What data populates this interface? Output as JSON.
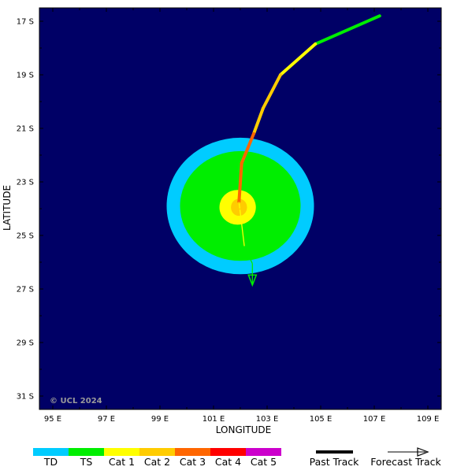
{
  "map": {
    "background": "#000066",
    "copyright": "© UCL 2024",
    "xlabel": "LONGITUDE",
    "ylabel": "LATITUDE",
    "lon_range": [
      94.5,
      109.5
    ],
    "lat_range": [
      -16.5,
      -31.5
    ],
    "lon_ticks": [
      {
        "value": 95,
        "label": "95 E"
      },
      {
        "value": 97,
        "label": "97 E"
      },
      {
        "value": 99,
        "label": "99 E"
      },
      {
        "value": 101,
        "label": "101 E"
      },
      {
        "value": 103,
        "label": "103 E"
      },
      {
        "value": 105,
        "label": "105 E"
      },
      {
        "value": 107,
        "label": "107 E"
      },
      {
        "value": 109,
        "label": "109 E"
      }
    ],
    "lat_ticks": [
      {
        "value": -17,
        "label": "17 S"
      },
      {
        "value": -19,
        "label": "19 S"
      },
      {
        "value": -21,
        "label": "21 S"
      },
      {
        "value": -23,
        "label": "23 S"
      },
      {
        "value": -25,
        "label": "25 S"
      },
      {
        "value": -27,
        "label": "27 S"
      },
      {
        "value": -29,
        "label": "29 S"
      },
      {
        "value": -31,
        "label": "31 S"
      }
    ],
    "wind_fields": [
      {
        "category": "TD",
        "color": "#00ccff",
        "center": [
          102.0,
          -23.9
        ],
        "radius_lon": 2.75,
        "radius_lat": 2.55
      },
      {
        "category": "TS",
        "color": "#00ee00",
        "center": [
          102.0,
          -23.9
        ],
        "radius_lon": 2.25,
        "radius_lat": 2.05
      },
      {
        "category": "Cat 1",
        "color": "#ffff00",
        "center": [
          101.9,
          -23.95
        ],
        "radius_lon": 0.68,
        "radius_lat": 0.65
      },
      {
        "category": "Cat 2",
        "color": "#ffcc00",
        "center": [
          101.95,
          -23.95
        ],
        "radius_lon": 0.3,
        "radius_lat": 0.32
      }
    ],
    "past_track": [
      {
        "lon": 107.2,
        "lat": -16.8,
        "color": "#00ee00"
      },
      {
        "lon": 104.8,
        "lat": -17.85,
        "color": "#00ee00"
      },
      {
        "lon": 103.5,
        "lat": -19.0,
        "color": "#ffff00"
      },
      {
        "lon": 102.85,
        "lat": -20.25,
        "color": "#ffcc00"
      },
      {
        "lon": 102.5,
        "lat": -21.2,
        "color": "#ffcc00"
      },
      {
        "lon": 102.05,
        "lat": -22.3,
        "color": "#ff6600"
      },
      {
        "lon": 101.95,
        "lat": -23.75,
        "color": "#ff6600"
      }
    ],
    "forecast_track": [
      {
        "lon": 101.95,
        "lat": -23.75,
        "color": "#ffff00"
      },
      {
        "lon": 102.15,
        "lat": -25.4,
        "color": "#ffff00"
      },
      {
        "lon": 102.45,
        "lat": -26.05,
        "color": "#00ee00"
      },
      {
        "lon": 102.45,
        "lat": -26.8,
        "color": "#00ee00"
      }
    ],
    "current_position": {
      "lon": 101.95,
      "lat": -23.9
    }
  },
  "legend": {
    "categories": [
      {
        "label": "TD",
        "color": "#00ccff"
      },
      {
        "label": "TS",
        "color": "#00ee00"
      },
      {
        "label": "Cat 1",
        "color": "#ffff00"
      },
      {
        "label": "Cat 2",
        "color": "#ffcc00"
      },
      {
        "label": "Cat 3",
        "color": "#ff6600"
      },
      {
        "label": "Cat 4",
        "color": "#ff0000"
      },
      {
        "label": "Cat 5",
        "color": "#cc00cc"
      }
    ],
    "past_track_label": "Past Track",
    "forecast_track_label": "Forecast Track"
  }
}
